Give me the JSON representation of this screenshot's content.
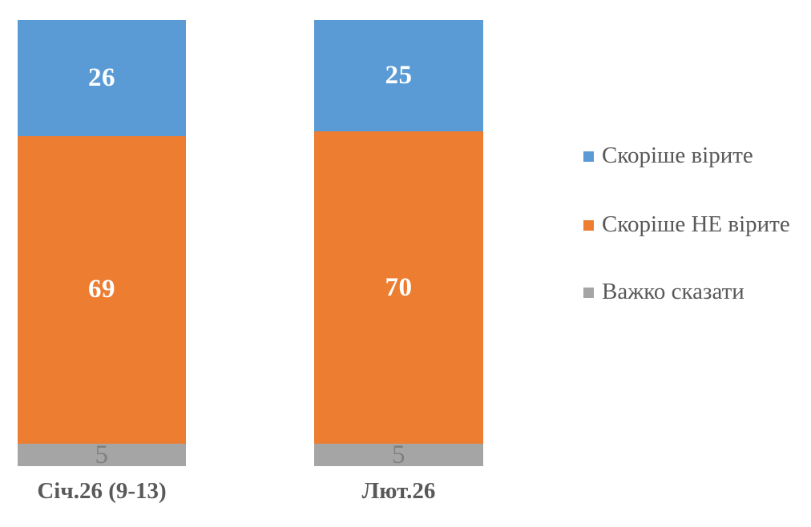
{
  "chart_data": {
    "type": "bar",
    "variant": "stacked-column",
    "title": "",
    "xlabel": "",
    "ylabel": "",
    "axis_max": 100,
    "grid": false,
    "legend_position": "right",
    "background_color": "#FFFFFF",
    "category_label_color": "#595959",
    "legend_text_color": "#595959",
    "categories": [
      "Січ.26 (9-13)",
      "Лют.26"
    ],
    "series": [
      {
        "name": "Скоріше вірите",
        "color": "#5B9BD5",
        "values": [
          26,
          25
        ],
        "label_color": "#FFFFFF",
        "label_bold": true
      },
      {
        "name": "Скоріше НЕ вірите",
        "color": "#ED7D31",
        "values": [
          69,
          70
        ],
        "label_color": "#FFFFFF",
        "label_bold": true
      },
      {
        "name": "Важко сказати",
        "color": "#A5A5A5",
        "values": [
          5,
          5
        ],
        "label_color": "#7F7F7F",
        "label_bold": false
      }
    ]
  }
}
